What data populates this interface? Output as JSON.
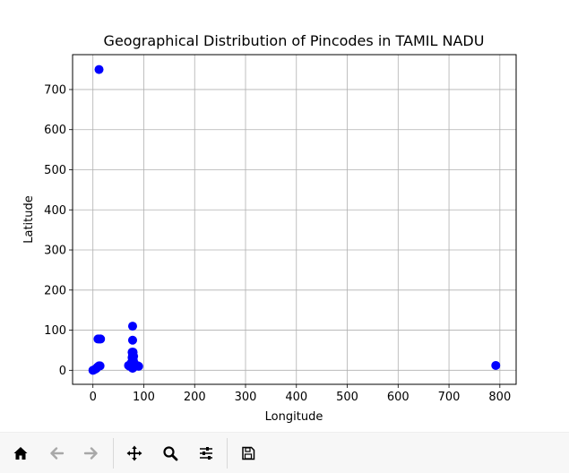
{
  "chart_data": {
    "type": "scatter",
    "title": "Geographical Distribution of Pincodes in TAMIL NADU",
    "xlabel": "Longitude",
    "ylabel": "Latitude",
    "xlim": [
      -40,
      832
    ],
    "ylim": [
      -35,
      787
    ],
    "xticks": [
      0,
      100,
      200,
      300,
      400,
      500,
      600,
      700,
      800
    ],
    "yticks": [
      0,
      100,
      200,
      300,
      400,
      500,
      600,
      700
    ],
    "grid": true,
    "marker_color": "#0000ff",
    "x": [
      12,
      0,
      2,
      5,
      7,
      9,
      11,
      12,
      14,
      10,
      13,
      15,
      78,
      70,
      72,
      74,
      76,
      78,
      79,
      80,
      82,
      84,
      86,
      88,
      90,
      78,
      77,
      79,
      78,
      80,
      77,
      79,
      78,
      76,
      80,
      78,
      78,
      792
    ],
    "y": [
      750,
      0,
      1,
      3,
      5,
      8,
      10,
      11,
      11,
      78,
      78,
      78,
      110,
      12,
      10,
      11,
      12,
      10,
      8,
      12,
      11,
      10,
      12,
      11,
      10,
      75,
      45,
      45,
      38,
      35,
      32,
      30,
      25,
      20,
      22,
      15,
      5,
      12
    ]
  },
  "toolbar": {
    "items": [
      {
        "name": "home-icon",
        "enabled": true
      },
      {
        "name": "back-icon",
        "enabled": false
      },
      {
        "name": "forward-icon",
        "enabled": false
      },
      {
        "name": "pan-icon",
        "enabled": true
      },
      {
        "name": "zoom-icon",
        "enabled": true
      },
      {
        "name": "configure-subplots-icon",
        "enabled": true
      },
      {
        "name": "save-icon",
        "enabled": true
      }
    ]
  }
}
